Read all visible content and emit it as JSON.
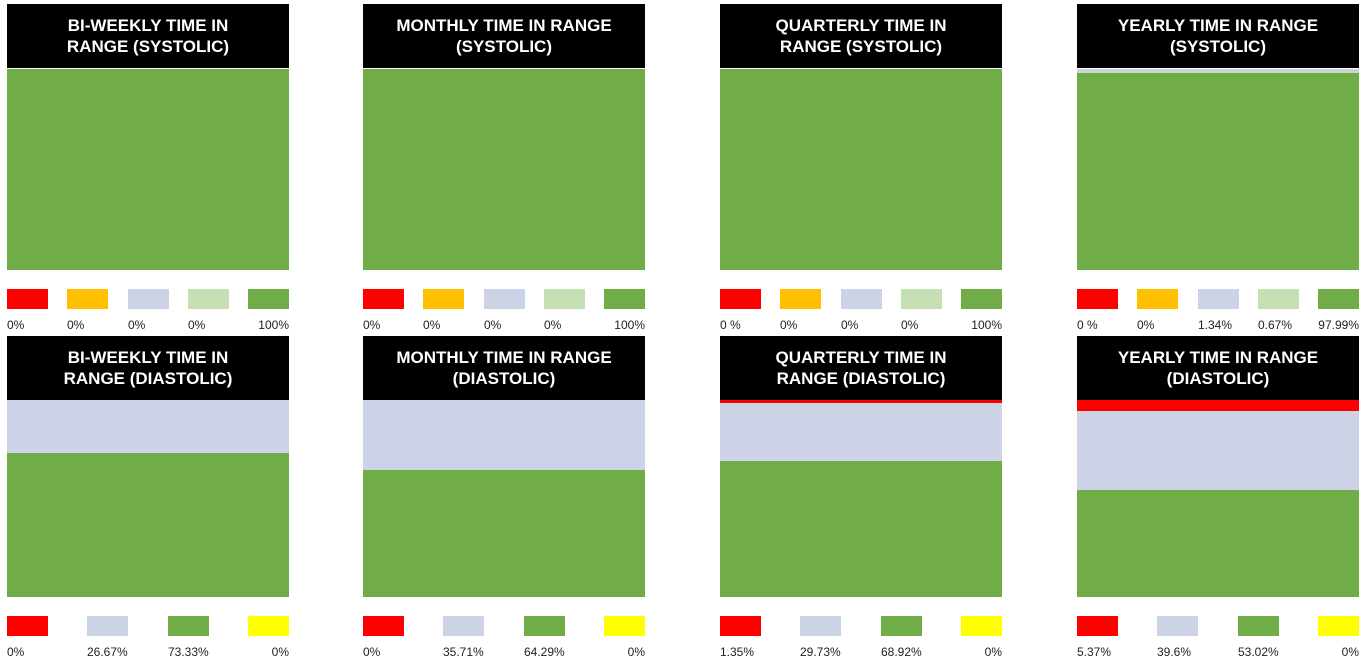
{
  "palette": {
    "red": "#ff0000",
    "orange": "#ffc000",
    "lavender": "#cdd3e6",
    "lightgreen": "#c5e0b4",
    "green": "#70ad47",
    "yellow": "#ffff00"
  },
  "chart_data": [
    {
      "type": "bar",
      "title_lines": [
        "BI-WEEKLY TIME IN",
        "RANGE (SYSTOLIC)"
      ],
      "segments_top_to_bottom": [
        {
          "color": "red",
          "value": 0
        },
        {
          "color": "orange",
          "value": 0
        },
        {
          "color": "lavender",
          "value": 0
        },
        {
          "color": "lightgreen",
          "value": 0
        },
        {
          "color": "green",
          "value": 100
        }
      ],
      "legend": [
        {
          "color": "red",
          "label": "0%"
        },
        {
          "color": "orange",
          "label": "0%"
        },
        {
          "color": "lavender",
          "label": "0%"
        },
        {
          "color": "lightgreen",
          "label": "0%"
        },
        {
          "color": "green",
          "label": "100%"
        }
      ]
    },
    {
      "type": "bar",
      "title_lines": [
        "MONTHLY TIME IN RANGE",
        "(SYSTOLIC)"
      ],
      "segments_top_to_bottom": [
        {
          "color": "red",
          "value": 0
        },
        {
          "color": "orange",
          "value": 0
        },
        {
          "color": "lavender",
          "value": 0
        },
        {
          "color": "lightgreen",
          "value": 0
        },
        {
          "color": "green",
          "value": 100
        }
      ],
      "legend": [
        {
          "color": "red",
          "label": "0%"
        },
        {
          "color": "orange",
          "label": "0%"
        },
        {
          "color": "lavender",
          "label": "0%"
        },
        {
          "color": "lightgreen",
          "label": "0%"
        },
        {
          "color": "green",
          "label": "100%"
        }
      ]
    },
    {
      "type": "bar",
      "title_lines": [
        "QUARTERLY TIME IN",
        "RANGE (SYSTOLIC)"
      ],
      "segments_top_to_bottom": [
        {
          "color": "red",
          "value": 0
        },
        {
          "color": "orange",
          "value": 0
        },
        {
          "color": "lavender",
          "value": 0
        },
        {
          "color": "lightgreen",
          "value": 0
        },
        {
          "color": "green",
          "value": 100
        }
      ],
      "legend": [
        {
          "color": "red",
          "label": "0 %"
        },
        {
          "color": "orange",
          "label": "0%"
        },
        {
          "color": "lavender",
          "label": "0%"
        },
        {
          "color": "lightgreen",
          "label": "0%"
        },
        {
          "color": "green",
          "label": "100%"
        }
      ]
    },
    {
      "type": "bar",
      "title_lines": [
        "YEARLY TIME IN RANGE",
        "(SYSTOLIC)"
      ],
      "segments_top_to_bottom": [
        {
          "color": "red",
          "value": 0
        },
        {
          "color": "orange",
          "value": 0
        },
        {
          "color": "lavender",
          "value": 1.34
        },
        {
          "color": "lightgreen",
          "value": 0.67
        },
        {
          "color": "green",
          "value": 97.99
        }
      ],
      "legend": [
        {
          "color": "red",
          "label": "0 %"
        },
        {
          "color": "orange",
          "label": "0%"
        },
        {
          "color": "lavender",
          "label": "1.34%"
        },
        {
          "color": "lightgreen",
          "label": "0.67%"
        },
        {
          "color": "green",
          "label": "97.99%"
        }
      ]
    },
    {
      "type": "bar",
      "title_lines": [
        "BI-WEEKLY TIME IN",
        "RANGE (DIASTOLIC)"
      ],
      "segments_top_to_bottom": [
        {
          "color": "red",
          "value": 0
        },
        {
          "color": "lavender",
          "value": 26.67
        },
        {
          "color": "green",
          "value": 73.33
        },
        {
          "color": "yellow",
          "value": 0
        }
      ],
      "legend": [
        {
          "color": "red",
          "label": "0%"
        },
        {
          "color": "lavender",
          "label": "26.67%"
        },
        {
          "color": "green",
          "label": "73.33%"
        },
        {
          "color": "yellow",
          "label": "0%"
        }
      ]
    },
    {
      "type": "bar",
      "title_lines": [
        "MONTHLY TIME IN RANGE",
        "(DIASTOLIC)"
      ],
      "segments_top_to_bottom": [
        {
          "color": "red",
          "value": 0
        },
        {
          "color": "lavender",
          "value": 35.71
        },
        {
          "color": "green",
          "value": 64.29
        },
        {
          "color": "yellow",
          "value": 0
        }
      ],
      "legend": [
        {
          "color": "red",
          "label": "0%"
        },
        {
          "color": "lavender",
          "label": "35.71%"
        },
        {
          "color": "green",
          "label": "64.29%"
        },
        {
          "color": "yellow",
          "label": "0%"
        }
      ]
    },
    {
      "type": "bar",
      "title_lines": [
        "QUARTERLY TIME IN",
        "RANGE (DIASTOLIC)"
      ],
      "segments_top_to_bottom": [
        {
          "color": "red",
          "value": 1.35
        },
        {
          "color": "lavender",
          "value": 29.73
        },
        {
          "color": "green",
          "value": 68.92
        },
        {
          "color": "yellow",
          "value": 0
        }
      ],
      "legend": [
        {
          "color": "red",
          "label": "1.35%"
        },
        {
          "color": "lavender",
          "label": "29.73%"
        },
        {
          "color": "green",
          "label": "68.92%"
        },
        {
          "color": "yellow",
          "label": "0%"
        }
      ]
    },
    {
      "type": "bar",
      "title_lines": [
        "YEARLY TIME IN RANGE",
        "(DIASTOLIC)"
      ],
      "segments_top_to_bottom": [
        {
          "color": "red",
          "value": 5.37
        },
        {
          "color": "lavender",
          "value": 39.6
        },
        {
          "color": "green",
          "value": 53.02
        },
        {
          "color": "yellow",
          "value": 0
        }
      ],
      "legend": [
        {
          "color": "red",
          "label": "5.37%"
        },
        {
          "color": "lavender",
          "label": "39.6%"
        },
        {
          "color": "green",
          "label": "53.02%"
        },
        {
          "color": "yellow",
          "label": "0%"
        }
      ]
    }
  ]
}
